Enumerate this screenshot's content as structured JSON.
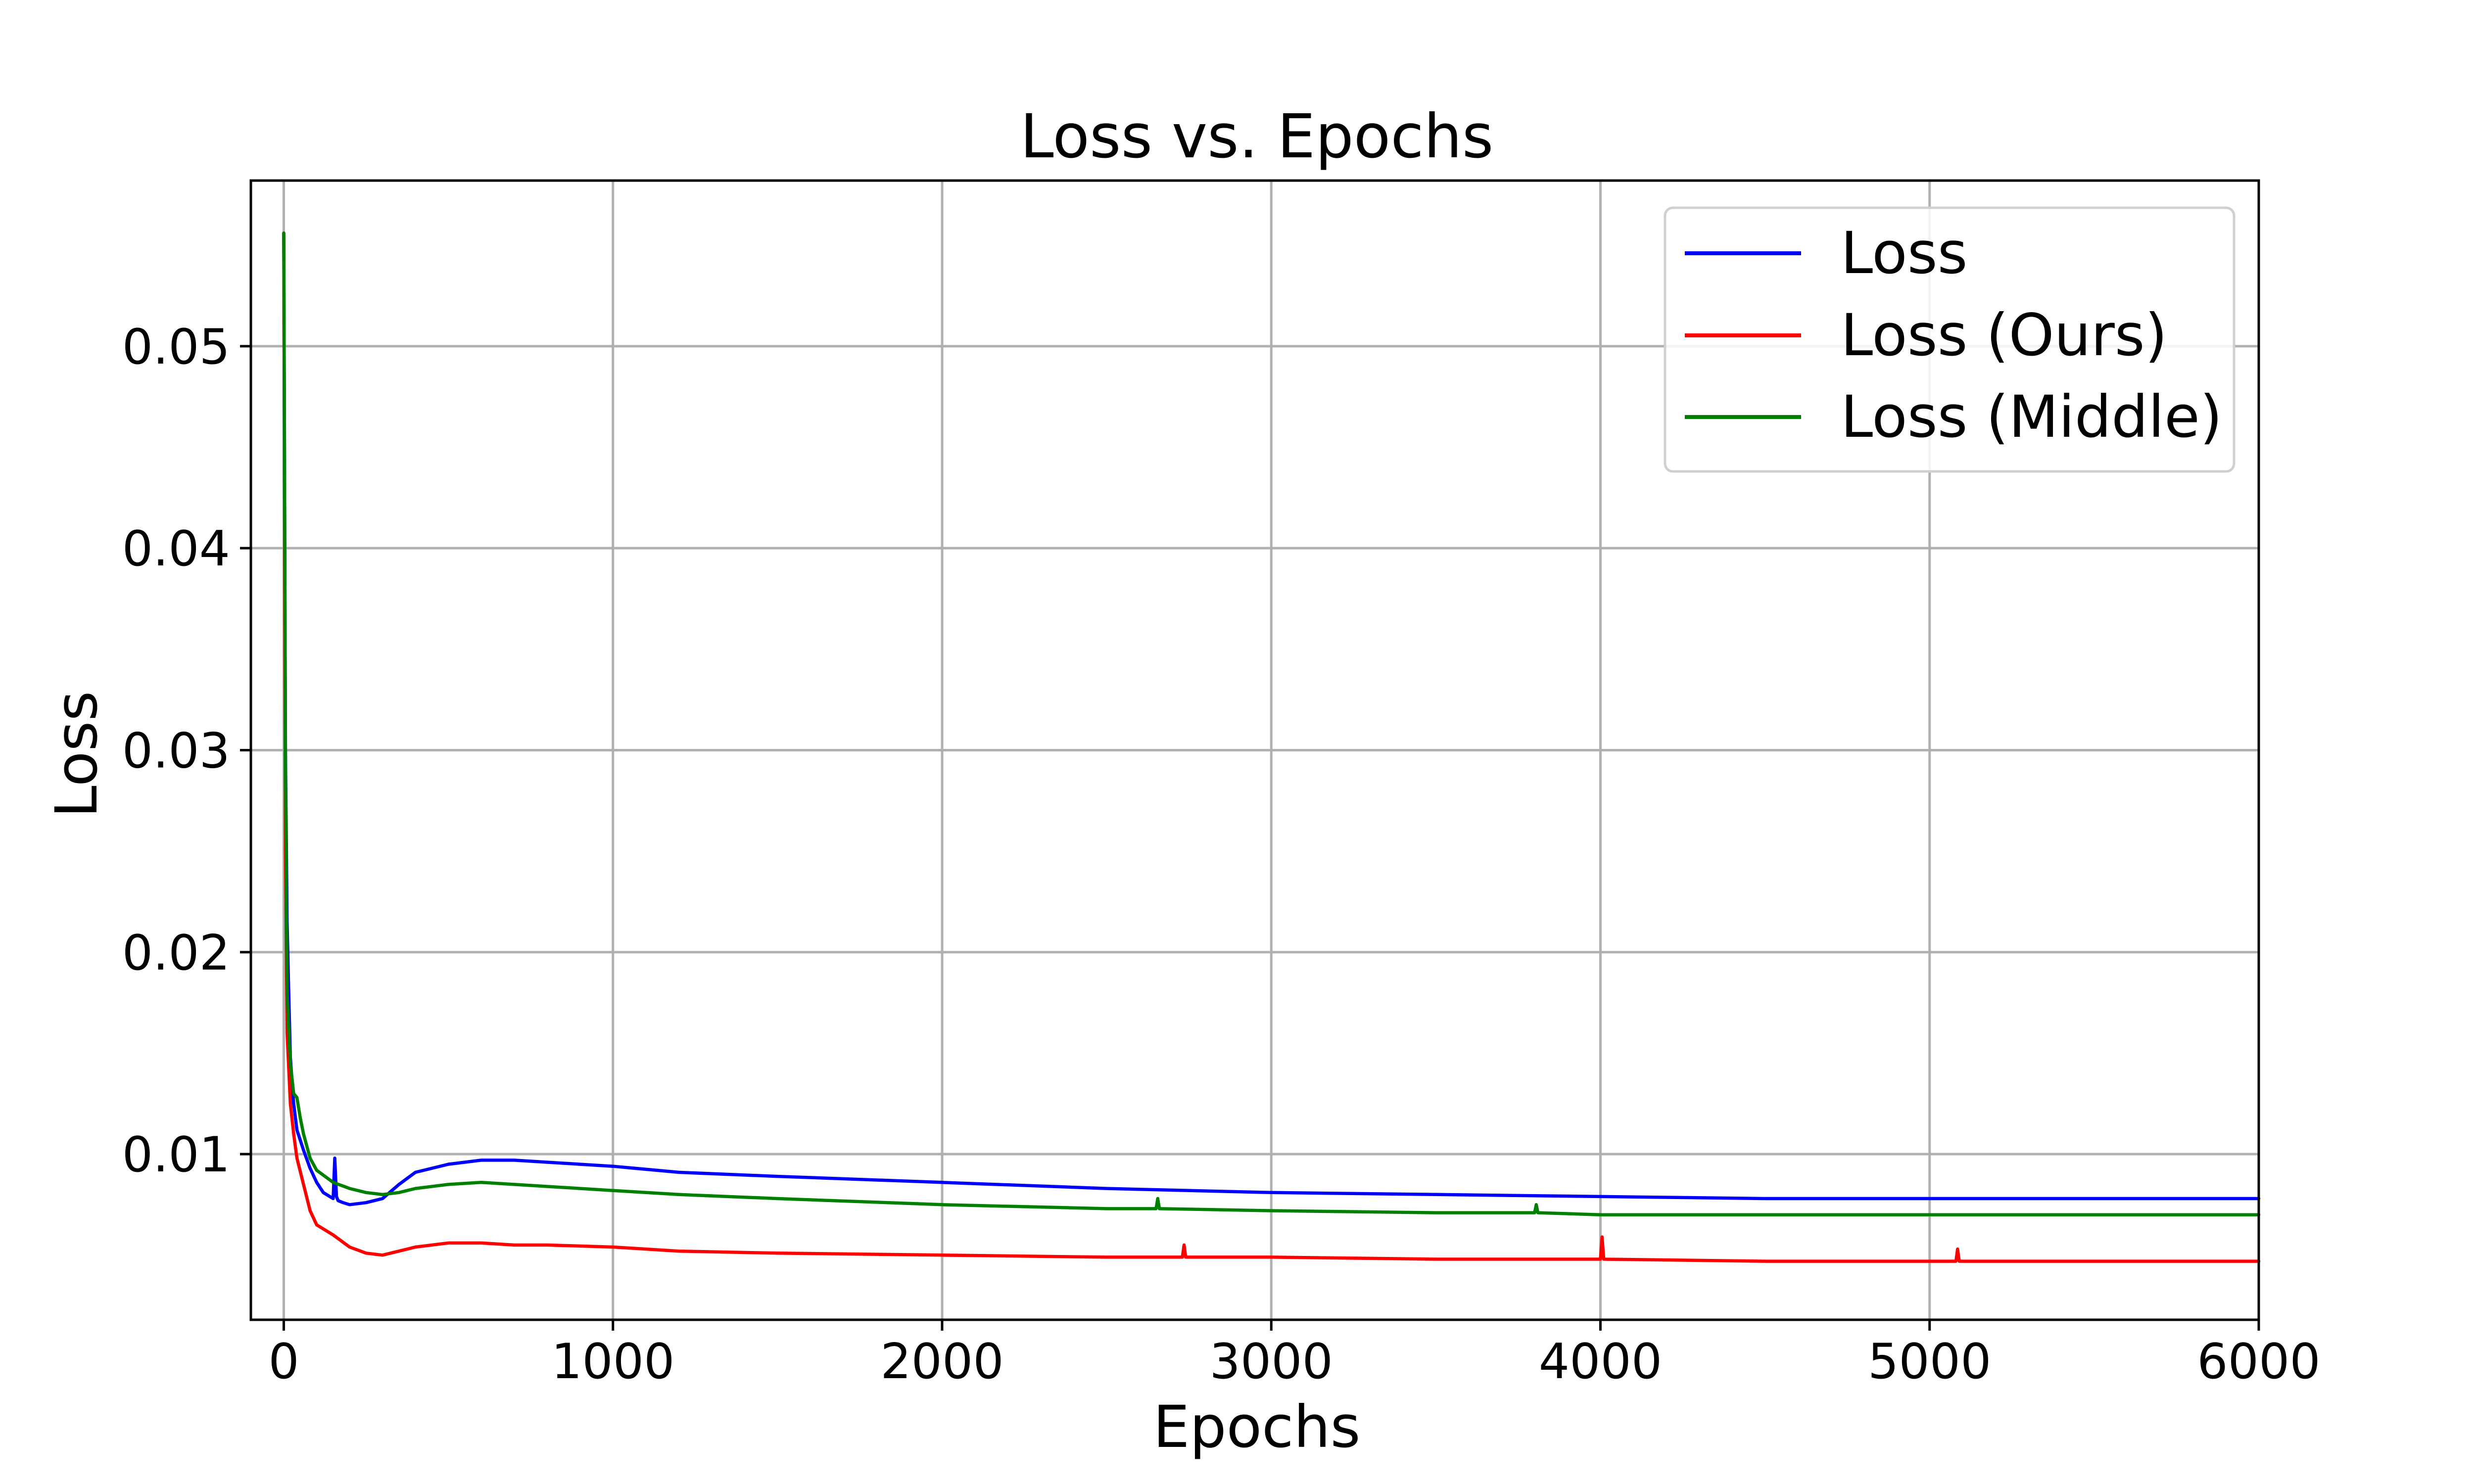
{
  "chart_data": {
    "type": "line",
    "title": "Loss vs. Epochs",
    "xlabel": "Epochs",
    "ylabel": "Loss",
    "xlim": [
      -100,
      6000
    ],
    "ylim": [
      0.0018,
      0.0582
    ],
    "xticks": [
      0,
      1000,
      2000,
      3000,
      4000,
      5000,
      6000
    ],
    "xtick_labels": [
      "0",
      "1000",
      "2000",
      "3000",
      "4000",
      "5000",
      "6000"
    ],
    "yticks": [
      0.01,
      0.02,
      0.03,
      0.04,
      0.05
    ],
    "ytick_labels": [
      "0.01",
      "0.02",
      "0.03",
      "0.04",
      "0.05"
    ],
    "grid": true,
    "legend_position": "top-right",
    "series": [
      {
        "name": "Loss",
        "color": "#0000ff",
        "x": [
          0,
          5,
          10,
          15,
          20,
          30,
          40,
          60,
          80,
          100,
          120,
          150,
          155,
          160,
          165,
          180,
          200,
          250,
          300,
          350,
          400,
          500,
          600,
          700,
          800,
          900,
          1000,
          1200,
          1500,
          2000,
          2500,
          3000,
          3500,
          4000,
          4500,
          5000,
          5500,
          6000
        ],
        "y": [
          0.0556,
          0.03,
          0.0215,
          0.018,
          0.0148,
          0.0125,
          0.0112,
          0.0102,
          0.0093,
          0.0086,
          0.0081,
          0.0078,
          0.0098,
          0.0079,
          0.0077,
          0.0076,
          0.0075,
          0.0076,
          0.0078,
          0.0085,
          0.0091,
          0.0095,
          0.0097,
          0.0097,
          0.0096,
          0.0095,
          0.0094,
          0.0091,
          0.0089,
          0.0086,
          0.0083,
          0.0081,
          0.008,
          0.0079,
          0.0078,
          0.0078,
          0.0078,
          0.0078
        ]
      },
      {
        "name": "Loss (Ours)",
        "color": "#ff0000",
        "x": [
          0,
          5,
          10,
          20,
          30,
          40,
          60,
          80,
          100,
          150,
          200,
          250,
          300,
          350,
          400,
          500,
          600,
          700,
          800,
          1000,
          1200,
          1500,
          2000,
          2500,
          2730,
          2735,
          2740,
          3000,
          3500,
          4000,
          4005,
          4010,
          4500,
          5000,
          5080,
          5085,
          5090,
          5500,
          6000
        ],
        "y": [
          0.0556,
          0.025,
          0.016,
          0.0125,
          0.011,
          0.0098,
          0.0085,
          0.0072,
          0.0065,
          0.006,
          0.0054,
          0.0051,
          0.005,
          0.0052,
          0.0054,
          0.0056,
          0.0056,
          0.0055,
          0.0055,
          0.0054,
          0.0052,
          0.0051,
          0.005,
          0.0049,
          0.0049,
          0.0055,
          0.0049,
          0.0049,
          0.0048,
          0.0048,
          0.0059,
          0.0048,
          0.0047,
          0.0047,
          0.0047,
          0.0053,
          0.0047,
          0.0047,
          0.0047
        ]
      },
      {
        "name": "Loss (Middle)",
        "color": "#008000",
        "x": [
          0,
          5,
          10,
          20,
          30,
          40,
          50,
          60,
          80,
          100,
          150,
          200,
          250,
          300,
          350,
          400,
          500,
          600,
          700,
          800,
          1000,
          1200,
          1500,
          2000,
          2500,
          2650,
          2655,
          2660,
          3000,
          3500,
          3800,
          3805,
          3810,
          4000,
          4500,
          5000,
          5500,
          6000
        ],
        "y": [
          0.0556,
          0.03,
          0.018,
          0.0145,
          0.013,
          0.0128,
          0.0118,
          0.011,
          0.0098,
          0.0092,
          0.0086,
          0.0083,
          0.0081,
          0.008,
          0.0081,
          0.0083,
          0.0085,
          0.0086,
          0.0085,
          0.0084,
          0.0082,
          0.008,
          0.0078,
          0.0075,
          0.0073,
          0.0073,
          0.0078,
          0.0073,
          0.0072,
          0.0071,
          0.0071,
          0.0075,
          0.0071,
          0.007,
          0.007,
          0.007,
          0.007,
          0.007
        ]
      }
    ]
  }
}
